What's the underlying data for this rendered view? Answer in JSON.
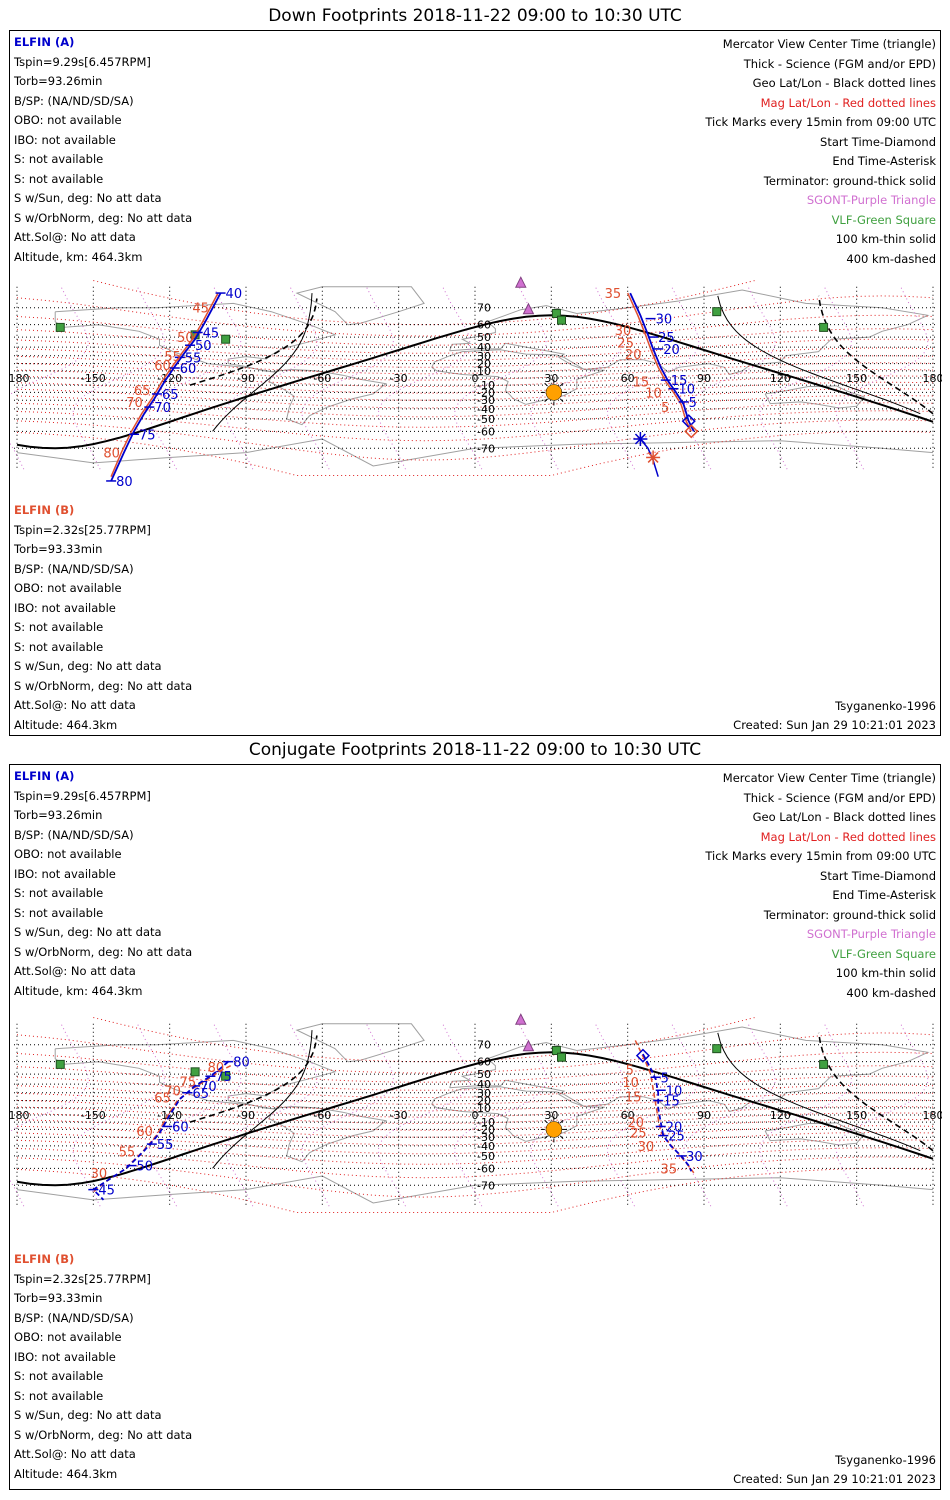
{
  "panels": [
    {
      "title": "Down Footprints 2018-11-22 09:00 to 10:30 UTC",
      "elfin_a": {
        "header": "ELFIN (A)",
        "lines": [
          "Tspin=9.29s[6.457RPM]",
          "Torb=93.26min",
          "B/SP: (NA/ND/SD/SA)",
          "OBO: not available",
          "IBO: not available",
          "S: not available",
          "S: not available",
          "S w/Sun, deg: No att data",
          "S w/OrbNorm, deg: No att data",
          "Att.Sol@: No att data",
          "Altitude, km: 464.3km"
        ]
      },
      "elfin_b": {
        "header": "ELFIN (B)",
        "lines": [
          "Tspin=2.32s[25.77RPM]",
          "Torb=93.33min",
          "B/SP: (NA/ND/SD/SA)",
          "OBO: not available",
          "IBO: not available",
          "S: not available",
          "S: not available",
          "S w/Sun, deg: No att data",
          "S w/OrbNorm, deg: No att data",
          "Att.Sol@: No att data",
          "Altitude: 464.3km"
        ]
      },
      "track_a": {
        "blue": [
          [
            -100,
            76,
            "40"
          ],
          [
            -109,
            54,
            "45"
          ],
          [
            -112,
            42,
            "50"
          ],
          [
            -116,
            28,
            "55"
          ],
          [
            -118,
            14,
            "60"
          ],
          [
            -125,
            -22,
            "65"
          ],
          [
            -128,
            -38,
            "70"
          ],
          [
            -134,
            -62,
            "75"
          ],
          [
            -143,
            -81,
            "80"
          ]
        ],
        "red": [
          [
            -103,
            70,
            "45"
          ],
          [
            -109,
            50,
            "50"
          ],
          [
            -114,
            30,
            "55"
          ],
          [
            -118,
            18,
            "60"
          ],
          [
            -126,
            -17,
            "65"
          ],
          [
            -129,
            -32,
            "70"
          ],
          [
            -138,
            -72,
            "80"
          ]
        ],
        "blue_line": [
          [
            -100,
            76
          ],
          [
            -106,
            62
          ],
          [
            -110,
            48
          ],
          [
            -114,
            34
          ],
          [
            -118,
            16
          ],
          [
            -122,
            -5
          ],
          [
            -126,
            -28
          ],
          [
            -130,
            -45
          ],
          [
            -134,
            -60
          ],
          [
            -138,
            -72
          ],
          [
            -143,
            -81
          ]
        ],
        "red_line": [
          [
            -101,
            76
          ],
          [
            -107,
            62
          ],
          [
            -111,
            48
          ],
          [
            -115,
            34
          ],
          [
            -119,
            16
          ],
          [
            -123,
            -5
          ],
          [
            -127,
            -28
          ],
          [
            -131,
            -45
          ],
          [
            -135,
            -60
          ],
          [
            -139,
            -72
          ],
          [
            -143,
            -80
          ]
        ]
      },
      "track_b": {
        "blue": [
          [
            69,
            64,
            "30"
          ],
          [
            70,
            50,
            "25"
          ],
          [
            72,
            38,
            "20"
          ],
          [
            75,
            -3,
            "15"
          ],
          [
            78,
            -15,
            "10"
          ],
          [
            82,
            -32,
            "5"
          ]
        ],
        "red": [
          [
            59,
            76,
            "35"
          ],
          [
            63,
            56,
            "30"
          ],
          [
            64,
            45,
            "25"
          ],
          [
            67,
            32,
            "20"
          ],
          [
            70,
            -5,
            "15"
          ],
          [
            75,
            -20,
            "10"
          ],
          [
            78,
            -38,
            "5"
          ]
        ],
        "blue_line": [
          [
            61,
            76
          ],
          [
            65,
            66
          ],
          [
            68,
            52
          ],
          [
            70,
            38
          ],
          [
            73,
            15
          ],
          [
            76,
            -5
          ],
          [
            79,
            -20
          ],
          [
            82,
            -35
          ],
          [
            84,
            -52
          ],
          [
            86,
            -60
          ]
        ],
        "red_line": [
          [
            60,
            76
          ],
          [
            64,
            66
          ],
          [
            67,
            52
          ],
          [
            69,
            38
          ],
          [
            72,
            15
          ],
          [
            75,
            -5
          ],
          [
            78,
            -20
          ],
          [
            81,
            -35
          ],
          [
            83,
            -52
          ],
          [
            85,
            -60
          ]
        ],
        "lower_line": [
          [
            65,
            -65
          ],
          [
            68,
            -70
          ],
          [
            70,
            -75
          ],
          [
            72,
            -80
          ]
        ],
        "start_diamonds": [
          [
            84,
            -52,
            "blue"
          ],
          [
            85,
            -60,
            "red"
          ]
        ],
        "asterisks": [
          [
            65,
            -65,
            "blue"
          ],
          [
            70,
            -74,
            "red"
          ]
        ]
      },
      "footer_left": "Tsyganenko-1996",
      "footer_right": "Created: Sun Jan 29 10:21:01 2023"
    },
    {
      "title": "Conjugate Footprints 2018-11-22 09:00 to 10:30 UTC",
      "elfin_a": {
        "header": "ELFIN (A)",
        "lines": [
          "Tspin=9.29s[6.457RPM]",
          "Torb=93.26min",
          "B/SP: (NA/ND/SD/SA)",
          "OBO: not available",
          "IBO: not available",
          "S: not available",
          "S: not available",
          "S w/Sun, deg: No att data",
          "S w/OrbNorm, deg: No att data",
          "Att.Sol@: No att data",
          "Altitude, km: 464.3km"
        ]
      },
      "elfin_b": {
        "header": "ELFIN (B)",
        "lines": [
          "Tspin=2.32s[25.77RPM]",
          "Torb=93.33min",
          "B/SP: (NA/ND/SD/SA)",
          "OBO: not available",
          "IBO: not available",
          "S: not available",
          "S: not available",
          "S w/Sun, deg: No att data",
          "S w/OrbNorm, deg: No att data",
          "Att.Sol@: No att data",
          "Altitude: 464.3km"
        ]
      },
      "track_a": {
        "blue": [
          [
            -97,
            60,
            "80"
          ],
          [
            -104,
            48,
            "75"
          ],
          [
            -110,
            38,
            "70"
          ],
          [
            -113,
            30,
            "65"
          ],
          [
            -121,
            -16,
            "60"
          ],
          [
            -127,
            -38,
            "55"
          ],
          [
            -135,
            -58,
            "50"
          ],
          [
            -150,
            -72,
            "45"
          ]
        ],
        "red": [
          [
            -97,
            56,
            "80"
          ],
          [
            -108,
            43,
            "75"
          ],
          [
            -114,
            33,
            "70"
          ],
          [
            -118,
            24,
            "65"
          ],
          [
            -125,
            -22,
            "60"
          ],
          [
            -132,
            -46,
            "55"
          ],
          [
            -143,
            -63,
            "30"
          ]
        ],
        "blue_line": [
          [
            -97,
            60
          ],
          [
            -100,
            55
          ],
          [
            -104,
            48
          ],
          [
            -110,
            38
          ],
          [
            -116,
            22
          ],
          [
            -120,
            0
          ],
          [
            -124,
            -25
          ],
          [
            -130,
            -45
          ],
          [
            -137,
            -60
          ],
          [
            -145,
            -68
          ],
          [
            -150,
            -72
          ],
          [
            -146,
            -76
          ]
        ],
        "red_line": [
          [
            -96,
            57
          ],
          [
            -100,
            53
          ],
          [
            -105,
            45
          ],
          [
            -111,
            35
          ],
          [
            -117,
            20
          ],
          [
            -121,
            -2
          ],
          [
            -125,
            -27
          ],
          [
            -131,
            -47
          ],
          [
            -138,
            -61
          ],
          [
            -146,
            -69
          ],
          [
            -150,
            -73
          ]
        ]
      },
      "track_b": {
        "blue": [
          [
            71,
            47,
            "5"
          ],
          [
            73,
            33,
            "10"
          ],
          [
            72,
            20,
            "15"
          ],
          [
            73,
            -16,
            "20"
          ],
          [
            74,
            -28,
            "25"
          ],
          [
            81,
            -50,
            "30"
          ]
        ],
        "red": [
          [
            64,
            54,
            "5"
          ],
          [
            66,
            42,
            "10"
          ],
          [
            67,
            25,
            "15"
          ],
          [
            68,
            -10,
            "20"
          ],
          [
            69,
            -24,
            "25"
          ],
          [
            72,
            -40,
            "30"
          ],
          [
            81,
            -60,
            "35"
          ]
        ],
        "blue_line": [
          [
            66,
            65
          ],
          [
            69,
            55
          ],
          [
            71,
            45
          ],
          [
            72,
            30
          ],
          [
            72,
            10
          ],
          [
            73,
            -10
          ],
          [
            74,
            -28
          ],
          [
            77,
            -40
          ],
          [
            81,
            -50
          ],
          [
            84,
            -58
          ],
          [
            85,
            -62
          ]
        ],
        "red_line": [
          [
            63,
            72
          ],
          [
            67,
            60
          ],
          [
            69,
            50
          ],
          [
            70,
            35
          ],
          [
            71,
            15
          ],
          [
            72,
            -5
          ],
          [
            73,
            -23
          ],
          [
            76,
            -36
          ],
          [
            80,
            -48
          ],
          [
            83,
            -56
          ],
          [
            86,
            -63
          ]
        ],
        "start_diamonds": [
          [
            66,
            64,
            "blue"
          ]
        ],
        "asterisks": []
      },
      "footer_left": "Tsyganenko-1996",
      "footer_right": "Created: Sun Jan 29 10:21:01 2023"
    }
  ],
  "legend": [
    {
      "text": "Mercator View Center Time (triangle)",
      "color": "#000000"
    },
    {
      "text": "Thick - Science (FGM and/or EPD)",
      "color": "#000000"
    },
    {
      "text": "Geo Lat/Lon - Black dotted lines",
      "color": "#000000"
    },
    {
      "text": "Mag Lat/Lon - Red dotted lines",
      "color": "#e02020"
    },
    {
      "text": "Tick Marks every 15min from 09:00 UTC",
      "color": "#000000"
    },
    {
      "text": "Start Time-Diamond",
      "color": "#000000"
    },
    {
      "text": "End Time-Asterisk",
      "color": "#000000"
    },
    {
      "text": "Terminator: ground-thick solid",
      "color": "#000000"
    },
    {
      "text": "SGONT-Purple Triangle",
      "color": "#d070d0"
    },
    {
      "text": "VLF-Green Square",
      "color": "#40a040"
    },
    {
      "text": "100 km-thin solid",
      "color": "#000000"
    },
    {
      "text": "400 km-dashed",
      "color": "#000000"
    }
  ],
  "axes": {
    "lon_ticks": [
      "-180",
      "-150",
      "-120",
      "-90",
      "-60",
      "-30",
      "0",
      "30",
      "60",
      "90",
      "120",
      "150",
      "180"
    ],
    "lat_ticks": [
      "70",
      "60",
      "50",
      "40",
      "30",
      "20",
      "10",
      "0",
      "-10",
      "-20",
      "-30",
      "-40",
      "-50",
      "-60",
      "-70"
    ]
  },
  "colors": {
    "blue": "#0000cc",
    "red": "#e05030",
    "grid": "#000000",
    "mag": "#e02020",
    "coast": "#a0a0a0",
    "green": "#40a040",
    "purple": "#d070d0",
    "sun": "#ffa000"
  }
}
